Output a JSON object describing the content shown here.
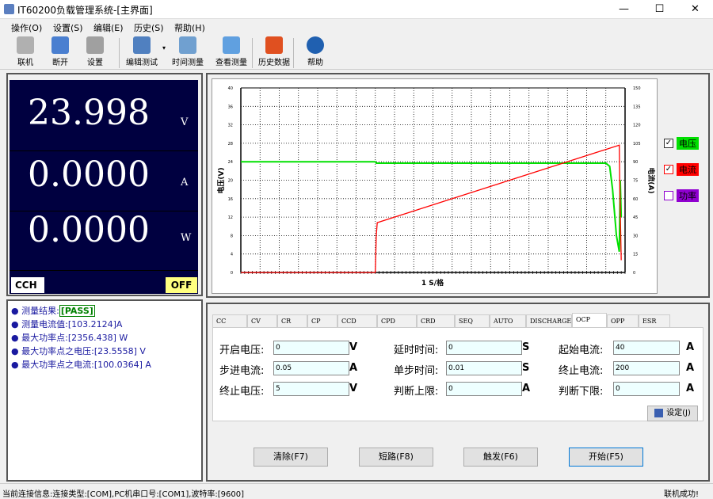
{
  "window": {
    "title": "IT60200负载管理系统-[主界面]",
    "minimize": "—",
    "maximize": "☐",
    "close": "✕"
  },
  "menu": [
    "操作(O)",
    "设置(S)",
    "编辑(E)",
    "历史(S)",
    "帮助(H)"
  ],
  "toolbar": [
    {
      "label": "联机",
      "icon": "connect-icon",
      "color": "#b0b0b0"
    },
    {
      "label": "断开",
      "icon": "disconnect-icon",
      "color": "#4a7fd0"
    },
    {
      "label": "设置",
      "icon": "gear-icon",
      "color": "#a0a0a0"
    },
    {
      "label": "编辑测试",
      "icon": "list-edit-icon",
      "color": "#5080c0"
    },
    {
      "label": "时间测量",
      "icon": "time-measure-icon",
      "color": "#70a0d0"
    },
    {
      "label": "查看测量",
      "icon": "view-measure-icon",
      "color": "#60a0e0"
    },
    {
      "label": "历史数据",
      "icon": "bar-chart-icon",
      "color": "#e05020"
    },
    {
      "label": "帮助",
      "icon": "help-icon",
      "color": "#2060b0"
    }
  ],
  "display": {
    "voltage": "23.998",
    "voltage_unit": "V",
    "current": "0.0000",
    "current_unit": "A",
    "power": "0.0000",
    "power_unit": "W",
    "mode": "CCH",
    "state": "OFF",
    "bg": "#000040"
  },
  "results": [
    {
      "label": "测量结果:",
      "value": "[PASS]"
    },
    {
      "label": "测量电流值:",
      "value": "[103.2124]A"
    },
    {
      "label": "最大功率点:",
      "value": "[2356.438] W"
    },
    {
      "label": "最大功率点之电压:",
      "value": "[23.5558] V"
    },
    {
      "label": "最大功率点之电流:",
      "value": "[100.0364] A"
    }
  ],
  "chart_data": {
    "type": "line",
    "xlabel": "1 S/格",
    "ylabel_left": "电压(V)",
    "ylabel_right": "电流(A)",
    "ylim_left": [
      0,
      40
    ],
    "yticks_left": [
      0,
      4,
      8,
      12,
      16,
      20,
      24,
      28,
      32,
      36,
      40
    ],
    "ylim_right": [
      0,
      150
    ],
    "yticks_right": [
      0,
      15,
      30,
      45,
      60,
      75,
      90,
      105,
      120,
      135,
      150
    ],
    "xlim": [
      0,
      20
    ],
    "grid": true,
    "legend": "right",
    "series": [
      {
        "name": "电压",
        "axis": "left",
        "color": "#00e000",
        "checked": true,
        "points": [
          [
            0,
            24
          ],
          [
            7.0,
            24
          ],
          [
            7.05,
            23.7
          ],
          [
            19.0,
            23.7
          ],
          [
            19.2,
            23
          ],
          [
            19.35,
            18
          ],
          [
            19.55,
            8
          ],
          [
            19.7,
            4.5
          ],
          [
            19.75,
            20
          ],
          [
            19.8,
            12
          ]
        ]
      },
      {
        "name": "电流",
        "axis": "right",
        "color": "#ff0000",
        "checked": true,
        "points": [
          [
            0,
            0
          ],
          [
            7.0,
            0
          ],
          [
            7.05,
            30
          ],
          [
            7.1,
            40.5
          ],
          [
            19.7,
            103.5
          ],
          [
            19.72,
            75
          ],
          [
            19.8,
            10
          ]
        ]
      },
      {
        "name": "功率",
        "axis": "right",
        "color": "#9000d0",
        "checked": false,
        "points": []
      }
    ]
  },
  "tabs": [
    "CC",
    "CV",
    "CR",
    "CP",
    "CCD",
    "CPD",
    "CRD",
    "SEQ",
    "AUTO",
    "DISCHARGE",
    "OCP",
    "OPP",
    "ESR"
  ],
  "active_tab": "OCP",
  "form": [
    {
      "label": "开启电压:",
      "value": "0",
      "unit": "V"
    },
    {
      "label": "延时时间:",
      "value": "0",
      "unit": "S"
    },
    {
      "label": "起始电流:",
      "value": "40",
      "unit": "A"
    },
    {
      "label": "步进电流:",
      "value": "0.05",
      "unit": "A"
    },
    {
      "label": "单步时间:",
      "value": "0.01",
      "unit": "S"
    },
    {
      "label": "终止电流:",
      "value": "200",
      "unit": "A"
    },
    {
      "label": "终止电压:",
      "value": "5",
      "unit": "V"
    },
    {
      "label": "判断上限:",
      "value": "0",
      "unit": "A"
    },
    {
      "label": "判断下限:",
      "value": "0",
      "unit": "A"
    }
  ],
  "set_button": "设定(J)",
  "buttons": [
    "清除(F7)",
    "短路(F8)",
    "触发(F6)",
    "开始(F5)"
  ],
  "status": {
    "info": "当前连接信息:连接类型:[COM],PC机串口号:[COM1],波特率:[9600]",
    "state": "联机成功!"
  }
}
